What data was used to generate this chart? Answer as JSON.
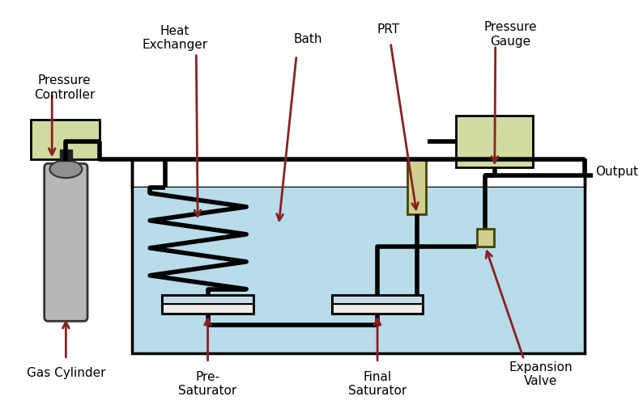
{
  "bg_color": "#ffffff",
  "bath_color": "#b8dcea",
  "box_green": "#d0dba0",
  "pipe_color": "#000000",
  "arrow_color": "#8b2020",
  "gas_cyl_color": "#b8b8b8",
  "sat_top_color": "#f0ece8",
  "sat_bot_color": "#c8dce8",
  "prt_color": "#d0d090",
  "ev_color": "#d0d090",
  "figsize": [
    7.94,
    5.01
  ],
  "dpi": 100,
  "labels": {
    "pressure_controller": "Pressure\nController",
    "heat_exchanger": "Heat\nExchanger",
    "bath": "Bath",
    "prt": "PRT",
    "pressure_gauge": "Pressure\nGauge",
    "output": "Output",
    "gas_cylinder": "Gas Cylinder",
    "pre_saturator": "Pre-\nSaturator",
    "final_saturator": "Final\nSaturator",
    "expansion_valve": "Expansion\nValve"
  }
}
